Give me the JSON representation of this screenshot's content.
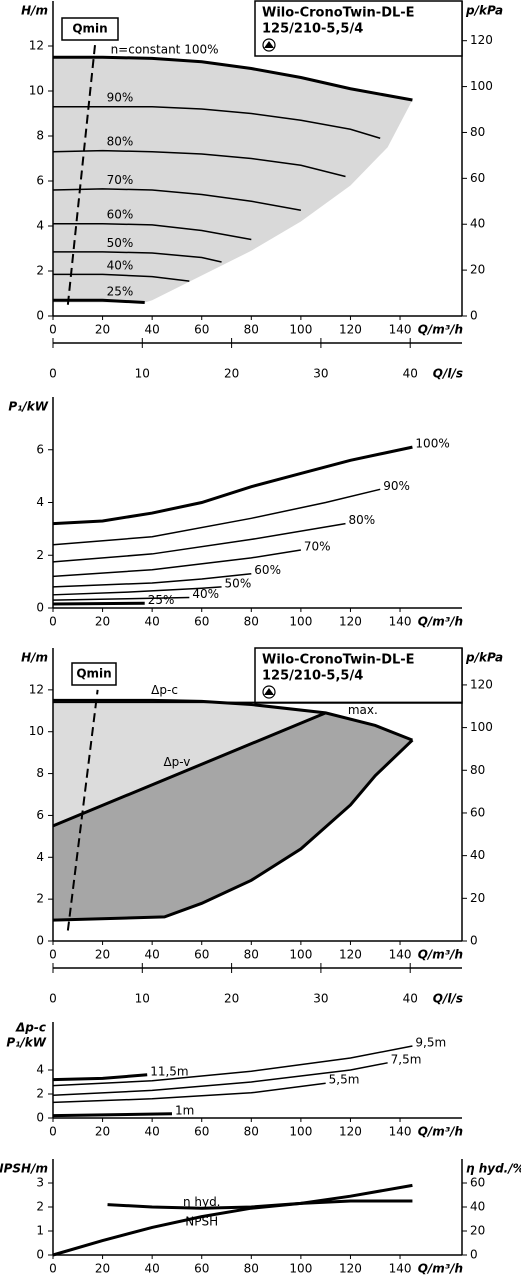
{
  "chart_data": [
    {
      "type": "line",
      "title": [
        "Wilo-CronoTwin-DL-E",
        "125/210-5,5/4"
      ],
      "ylabel": "H/m",
      "y2label": "p/kPa",
      "xlabel": "Q/m³/h",
      "x2label": "Q/l/s",
      "xlim": [
        0,
        165
      ],
      "xticks": [
        0,
        20,
        40,
        60,
        80,
        100,
        120,
        140
      ],
      "ylim": [
        0,
        14
      ],
      "yticks": [
        0,
        2,
        4,
        6,
        8,
        10,
        12
      ],
      "y2lim": [
        0,
        137.3
      ],
      "y2ticks": [
        0,
        20,
        40,
        60,
        80,
        100,
        120
      ],
      "x2lim": [
        0,
        45.8
      ],
      "x2ticks": [
        0,
        10,
        20,
        30,
        40
      ],
      "qmin": {
        "name": "Qmin",
        "x": [
          6,
          17
        ],
        "values": [
          0.5,
          12.1
        ]
      },
      "areas": [
        {
          "color": "#d9d9d9",
          "x": [
            0,
            20,
            40,
            60,
            80,
            100,
            120,
            145,
            135,
            120,
            100,
            80,
            60,
            40,
            37,
            0
          ],
          "values": [
            11.5,
            11.5,
            11.45,
            11.3,
            11.0,
            10.6,
            10.1,
            9.6,
            7.5,
            5.8,
            4.2,
            2.9,
            1.8,
            0.7,
            0.6,
            0.6
          ]
        }
      ],
      "series": [
        {
          "name": "n=constant 100%",
          "color": "#000",
          "bold": true,
          "x": [
            0,
            20,
            40,
            60,
            80,
            100,
            120,
            145
          ],
          "values": [
            11.5,
            11.5,
            11.45,
            11.3,
            11.0,
            10.6,
            10.1,
            9.6
          ]
        },
        {
          "name": "90%",
          "color": "#000",
          "x": [
            0,
            20,
            40,
            60,
            80,
            100,
            120,
            132
          ],
          "values": [
            9.3,
            9.3,
            9.3,
            9.2,
            9.0,
            8.7,
            8.3,
            7.9
          ]
        },
        {
          "name": "80%",
          "color": "#000",
          "x": [
            0,
            20,
            40,
            60,
            80,
            100,
            118
          ],
          "values": [
            7.3,
            7.35,
            7.3,
            7.2,
            7.0,
            6.7,
            6.2
          ]
        },
        {
          "name": "70%",
          "color": "#000",
          "x": [
            0,
            20,
            40,
            60,
            80,
            100
          ],
          "values": [
            5.6,
            5.65,
            5.6,
            5.4,
            5.1,
            4.7
          ]
        },
        {
          "name": "60%",
          "color": "#000",
          "x": [
            0,
            20,
            40,
            60,
            80
          ],
          "values": [
            4.1,
            4.1,
            4.05,
            3.8,
            3.4
          ]
        },
        {
          "name": "50%",
          "color": "#000",
          "x": [
            0,
            20,
            40,
            60,
            68
          ],
          "values": [
            2.85,
            2.85,
            2.8,
            2.6,
            2.4
          ]
        },
        {
          "name": "40%",
          "color": "#000",
          "x": [
            0,
            20,
            40,
            55
          ],
          "values": [
            1.85,
            1.85,
            1.75,
            1.55
          ]
        },
        {
          "name": "25%",
          "color": "#000",
          "bold": true,
          "x": [
            0,
            20,
            37
          ],
          "values": [
            0.7,
            0.7,
            0.6
          ]
        }
      ]
    },
    {
      "type": "line",
      "ylabel": "P₁/kW",
      "xlabel": "Q/m³/h",
      "xlim": [
        0,
        165
      ],
      "xticks": [
        0,
        20,
        40,
        60,
        80,
        100,
        120,
        140
      ],
      "ylim": [
        0,
        8
      ],
      "yticks": [
        0,
        2,
        4,
        6
      ],
      "series": [
        {
          "name": "100%",
          "color": "#000",
          "bold": true,
          "x": [
            0,
            20,
            40,
            60,
            80,
            100,
            120,
            145
          ],
          "values": [
            3.2,
            3.3,
            3.6,
            4.0,
            4.6,
            5.1,
            5.6,
            6.1
          ]
        },
        {
          "name": "90%",
          "color": "#000",
          "x": [
            0,
            40,
            80,
            110,
            132
          ],
          "values": [
            2.4,
            2.7,
            3.4,
            4.0,
            4.5
          ]
        },
        {
          "name": "80%",
          "color": "#000",
          "x": [
            0,
            40,
            80,
            118
          ],
          "values": [
            1.75,
            2.05,
            2.6,
            3.2
          ]
        },
        {
          "name": "70%",
          "color": "#000",
          "x": [
            0,
            40,
            80,
            100
          ],
          "values": [
            1.2,
            1.45,
            1.9,
            2.2
          ]
        },
        {
          "name": "60%",
          "color": "#000",
          "x": [
            0,
            40,
            60,
            80
          ],
          "values": [
            0.8,
            0.95,
            1.1,
            1.3
          ]
        },
        {
          "name": "50%",
          "color": "#000",
          "x": [
            0,
            30,
            60,
            68
          ],
          "values": [
            0.5,
            0.6,
            0.75,
            0.8
          ]
        },
        {
          "name": "40%",
          "color": "#000",
          "x": [
            0,
            30,
            55
          ],
          "values": [
            0.3,
            0.35,
            0.4
          ]
        },
        {
          "name": "25%",
          "color": "#000",
          "bold": true,
          "x": [
            0,
            37
          ],
          "values": [
            0.15,
            0.18
          ]
        }
      ]
    },
    {
      "type": "line",
      "title": [
        "Wilo-CronoTwin-DL-E",
        "125/210-5,5/4"
      ],
      "ylabel": "H/m",
      "y2label": "p/kPa",
      "xlabel": "Q/m³/h",
      "x2label": "Q/l/s",
      "xlim": [
        0,
        165
      ],
      "xticks": [
        0,
        20,
        40,
        60,
        80,
        100,
        120,
        140
      ],
      "ylim": [
        0,
        14
      ],
      "yticks": [
        0,
        2,
        4,
        6,
        8,
        10,
        12
      ],
      "y2lim": [
        0,
        137.3
      ],
      "y2ticks": [
        0,
        20,
        40,
        60,
        80,
        100,
        120
      ],
      "x2lim": [
        0,
        45.8
      ],
      "x2ticks": [
        0,
        10,
        20,
        30,
        40
      ],
      "qmin": {
        "name": "Qmin",
        "x": [
          6,
          18
        ],
        "values": [
          0.5,
          12.0
        ]
      },
      "areas": [
        {
          "color": "#dcdcdc",
          "x": [
            0,
            20,
            40,
            60,
            80,
            110,
            130,
            145,
            130,
            120,
            100,
            80,
            60,
            45,
            0
          ],
          "values": [
            11.5,
            11.5,
            11.5,
            11.45,
            11.3,
            10.9,
            10.3,
            9.6,
            7.9,
            6.5,
            4.4,
            2.9,
            1.8,
            1.15,
            1.0
          ]
        },
        {
          "color": "#a6a6a6",
          "x": [
            0,
            110,
            130,
            145,
            130,
            120,
            100,
            80,
            60,
            45,
            0
          ],
          "values": [
            5.5,
            10.9,
            10.3,
            9.6,
            7.9,
            6.5,
            4.4,
            2.9,
            1.8,
            1.15,
            1.0
          ]
        }
      ],
      "series": [
        {
          "name": "Δp-c",
          "color": "#000",
          "x": [
            0,
            165
          ],
          "values": [
            11.4,
            11.4
          ]
        },
        {
          "name": "max.",
          "color": "#000",
          "bold": true,
          "x": [
            0,
            20,
            40,
            60,
            80,
            110,
            130,
            145
          ],
          "values": [
            11.5,
            11.5,
            11.5,
            11.45,
            11.3,
            10.9,
            10.3,
            9.6
          ]
        },
        {
          "name": "Δp-v",
          "color": "#000",
          "bold": true,
          "x": [
            0,
            110
          ],
          "values": [
            5.5,
            10.9
          ]
        },
        {
          "color": "#000",
          "bold": true,
          "x": [
            145,
            130,
            120,
            100,
            80,
            60,
            45,
            0
          ],
          "values": [
            9.6,
            7.9,
            6.5,
            4.4,
            2.9,
            1.8,
            1.15,
            1.0
          ]
        }
      ]
    },
    {
      "type": "line",
      "ylabel": [
        "Δp-c",
        "P₁/kW"
      ],
      "xlabel": "Q/m³/h",
      "xlim": [
        0,
        165
      ],
      "xticks": [
        0,
        20,
        40,
        60,
        80,
        100,
        120,
        140
      ],
      "ylim": [
        0,
        8
      ],
      "yticks": [
        0,
        2,
        4
      ],
      "series": [
        {
          "name": "11,5m",
          "color": "#000",
          "bold": true,
          "x": [
            0,
            20,
            38
          ],
          "values": [
            3.2,
            3.3,
            3.6
          ]
        },
        {
          "name": "9,5m",
          "color": "#000",
          "x": [
            0,
            40,
            80,
            120,
            145
          ],
          "values": [
            2.7,
            3.1,
            3.9,
            5.0,
            6.0
          ]
        },
        {
          "name": "7,5m",
          "color": "#000",
          "x": [
            0,
            40,
            80,
            120,
            135
          ],
          "values": [
            1.9,
            2.3,
            3.0,
            4.0,
            4.6
          ]
        },
        {
          "name": "5,5m",
          "color": "#000",
          "x": [
            0,
            40,
            80,
            110
          ],
          "values": [
            1.3,
            1.6,
            2.1,
            2.9
          ]
        },
        {
          "name": "1m",
          "color": "#000",
          "bold": true,
          "x": [
            0,
            48
          ],
          "values": [
            0.2,
            0.35
          ]
        }
      ]
    },
    {
      "type": "line",
      "ylabel": "NPSH/m",
      "y2label": "η hyd./%",
      "xlabel": "Q/m³/h",
      "xlim": [
        0,
        165
      ],
      "xticks": [
        0,
        20,
        40,
        60,
        80,
        100,
        120,
        140
      ],
      "ylim": [
        0,
        4
      ],
      "yticks": [
        0,
        1,
        2,
        3
      ],
      "y2lim": [
        0,
        80
      ],
      "y2ticks": [
        0,
        20,
        40,
        60
      ],
      "series": [
        {
          "name": "η hyd.",
          "color": "#000",
          "bold": true,
          "axis": "y2",
          "x": [
            0,
            20,
            40,
            60,
            80,
            100,
            120,
            145
          ],
          "values": [
            0,
            12,
            23,
            32,
            39,
            43,
            45,
            45
          ]
        },
        {
          "name": "NPSH",
          "color": "#000",
          "bold": true,
          "x": [
            22,
            40,
            60,
            80,
            100,
            120,
            145
          ],
          "values": [
            2.1,
            2.0,
            1.95,
            2.0,
            2.15,
            2.45,
            2.9
          ]
        }
      ]
    }
  ]
}
